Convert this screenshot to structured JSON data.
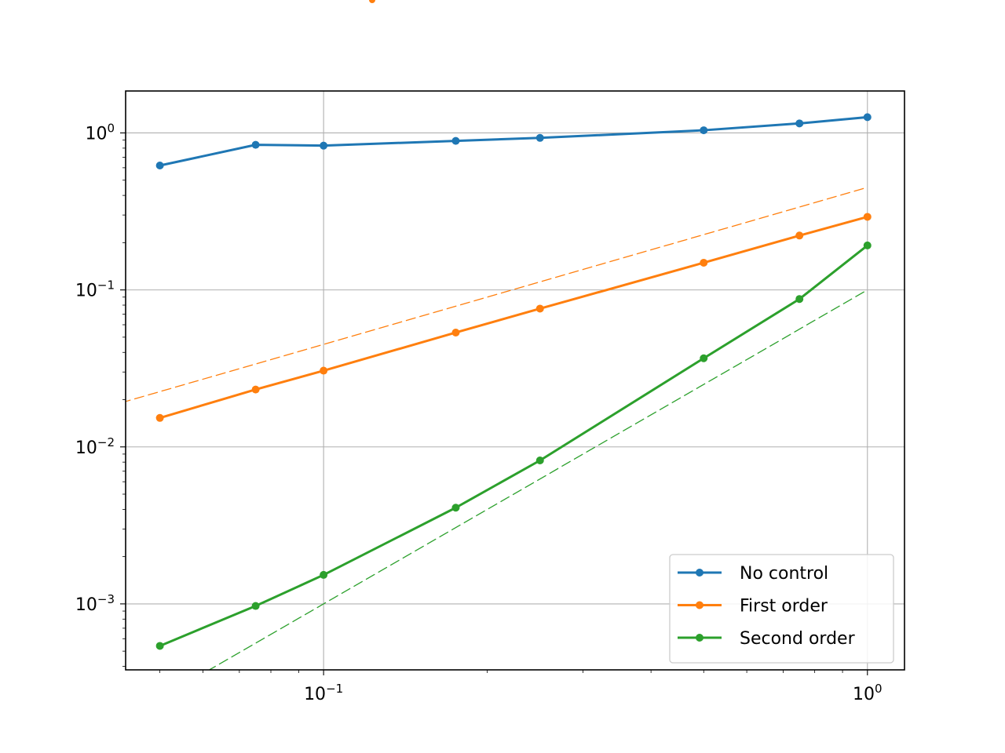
{
  "chart_data": {
    "type": "line",
    "title": "",
    "xlabel": "",
    "ylabel": "",
    "x_scale": "log",
    "y_scale": "log",
    "xlim": [
      0.04325,
      1.17
    ],
    "ylim": [
      0.00038,
      1.85
    ],
    "grid": true,
    "legend_position": "lower right",
    "x_major_ticks": [
      {
        "value": 0.1,
        "base": "10",
        "exp": "−1"
      },
      {
        "value": 1,
        "base": "10",
        "exp": "0"
      }
    ],
    "y_major_ticks": [
      {
        "value": 0.001,
        "base": "10",
        "exp": "−3"
      },
      {
        "value": 0.01,
        "base": "10",
        "exp": "−2"
      },
      {
        "value": 0.1,
        "base": "10",
        "exp": "−1"
      },
      {
        "value": 1,
        "base": "10",
        "exp": "0"
      }
    ],
    "x": [
      0.05,
      0.075,
      0.1,
      0.175,
      0.25,
      0.5,
      0.75,
      1.0
    ],
    "series": [
      {
        "name": "No control",
        "color": "#1f77b4",
        "values": [
          0.62,
          0.84,
          0.83,
          0.89,
          0.93,
          1.04,
          1.15,
          1.26
        ]
      },
      {
        "name": "First order",
        "color": "#ff7f0e",
        "values": [
          0.0153,
          0.0232,
          0.0306,
          0.0535,
          0.076,
          0.149,
          0.222,
          0.292
        ]
      },
      {
        "name": "Second order",
        "color": "#2ca02c",
        "values": [
          0.00054,
          0.00097,
          0.00153,
          0.0041,
          0.0082,
          0.0367,
          0.0875,
          0.192
        ]
      }
    ],
    "reference_lines": [
      {
        "color": "#ff7f0e",
        "x": [
          0.04,
          1.0
        ],
        "y": [
          0.018,
          0.45
        ],
        "style": "dashed"
      },
      {
        "color": "#2ca02c",
        "x": [
          0.055,
          1.0
        ],
        "y": [
          0.0003025,
          0.1
        ],
        "style": "dashed"
      }
    ]
  }
}
